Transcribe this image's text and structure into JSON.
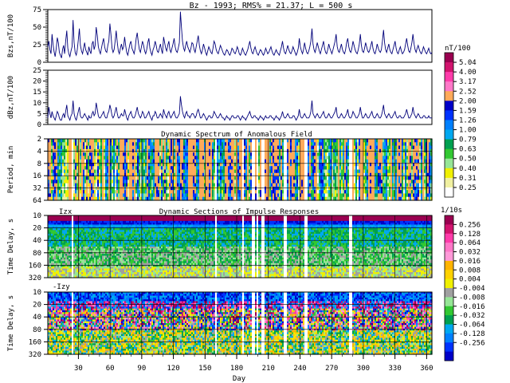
{
  "header": {
    "title": "Bz - 1993;  RMS% = 21.37;  L = 500 s"
  },
  "colors": {
    "trace": "#00007a",
    "grid": "#000000"
  },
  "chart_data": [
    {
      "type": "line",
      "panel": "bzs",
      "ylabel": "Bzs,nT/100",
      "yticks": [
        "0",
        "25",
        "50",
        "75"
      ],
      "ylim": [
        0,
        75
      ],
      "xlim": [
        1,
        365
      ],
      "y": [
        22,
        30,
        18,
        12,
        40,
        25,
        15,
        8,
        20,
        35,
        28,
        14,
        10,
        6,
        18,
        24,
        12,
        30,
        45,
        20,
        12,
        8,
        16,
        22,
        60,
        28,
        14,
        10,
        18,
        32,
        48,
        24,
        16,
        12,
        20,
        28,
        18,
        14,
        10,
        22,
        16,
        12,
        26,
        30,
        18,
        24,
        50,
        38,
        22,
        16,
        12,
        20,
        28,
        34,
        22,
        16,
        14,
        24,
        30,
        55,
        40,
        20,
        14,
        18,
        30,
        45,
        28,
        16,
        12,
        20,
        26,
        18,
        22,
        36,
        24,
        14,
        10,
        18,
        26,
        30,
        20,
        16,
        12,
        20,
        34,
        42,
        28,
        18,
        14,
        22,
        30,
        24,
        16,
        12,
        18,
        28,
        34,
        20,
        14,
        10,
        18,
        22,
        30,
        24,
        16,
        14,
        20,
        26,
        18,
        12,
        36,
        28,
        20,
        16,
        24,
        30,
        18,
        14,
        20,
        26,
        34,
        22,
        16,
        14,
        20,
        28,
        72,
        50,
        30,
        20,
        16,
        24,
        30,
        22,
        18,
        14,
        20,
        28,
        26,
        18,
        14,
        22,
        30,
        38,
        24,
        16,
        12,
        18,
        26,
        20,
        14,
        10,
        16,
        22,
        18,
        14,
        12,
        20,
        30,
        26,
        18,
        14,
        12,
        18,
        24,
        20,
        16,
        12,
        10,
        14,
        18,
        16,
        12,
        10,
        14,
        20,
        18,
        14,
        12,
        16,
        22,
        18,
        12,
        10,
        14,
        20,
        16,
        12,
        10,
        14,
        18,
        24,
        30,
        20,
        14,
        12,
        18,
        22,
        16,
        12,
        10,
        14,
        18,
        16,
        12,
        10,
        14,
        20,
        16,
        12,
        14,
        18,
        22,
        16,
        12,
        10,
        14,
        18,
        14,
        12,
        10,
        16,
        22,
        30,
        20,
        14,
        12,
        18,
        24,
        18,
        14,
        12,
        16,
        22,
        18,
        14,
        10,
        14,
        20,
        34,
        22,
        16,
        12,
        18,
        28,
        20,
        14,
        12,
        16,
        22,
        30,
        48,
        26,
        18,
        14,
        20,
        28,
        22,
        16,
        12,
        18,
        24,
        30,
        20,
        14,
        12,
        18,
        26,
        20,
        16,
        12,
        18,
        24,
        30,
        40,
        22,
        16,
        14,
        20,
        26,
        18,
        14,
        12,
        18,
        28,
        34,
        22,
        16,
        14,
        20,
        30,
        24,
        18,
        14,
        12,
        18,
        26,
        40,
        24,
        16,
        14,
        20,
        28,
        22,
        16,
        14,
        18,
        24,
        30,
        20,
        14,
        12,
        18,
        26,
        20,
        16,
        14,
        18,
        30,
        46,
        28,
        18,
        14,
        20,
        26,
        18,
        14,
        12,
        18,
        24,
        30,
        20,
        14,
        12,
        18,
        22,
        16,
        12,
        14,
        18,
        26,
        34,
        24,
        16,
        14,
        20,
        28,
        40,
        26,
        18,
        14,
        20,
        24,
        18,
        14,
        12,
        16,
        22,
        18,
        14,
        12,
        16,
        20,
        14,
        12,
        14
      ]
    },
    {
      "type": "line",
      "panel": "dbz",
      "ylabel": "dBz,nT/100",
      "yticks": [
        "0",
        "5",
        "10",
        "15",
        "20",
        "25"
      ],
      "ylim": [
        0,
        25
      ],
      "xlim": [
        1,
        365
      ],
      "y": [
        3,
        8,
        5,
        3,
        6,
        4,
        3,
        2,
        4,
        6,
        5,
        3,
        2,
        2,
        4,
        5,
        3,
        6,
        9,
        4,
        3,
        2,
        4,
        5,
        11,
        5,
        3,
        2,
        4,
        6,
        8,
        4,
        3,
        3,
        4,
        5,
        4,
        3,
        2,
        4,
        3,
        3,
        5,
        6,
        4,
        5,
        10,
        7,
        4,
        3,
        3,
        4,
        5,
        6,
        4,
        3,
        3,
        5,
        6,
        9,
        7,
        4,
        3,
        4,
        6,
        8,
        5,
        3,
        3,
        4,
        5,
        4,
        4,
        7,
        5,
        3,
        2,
        4,
        5,
        6,
        4,
        3,
        3,
        4,
        6,
        8,
        5,
        4,
        3,
        4,
        6,
        5,
        3,
        3,
        4,
        5,
        6,
        4,
        3,
        2,
        4,
        4,
        6,
        5,
        3,
        3,
        4,
        5,
        4,
        3,
        7,
        5,
        4,
        3,
        5,
        6,
        4,
        3,
        4,
        5,
        6,
        4,
        3,
        3,
        4,
        5,
        13,
        9,
        6,
        4,
        3,
        5,
        6,
        4,
        4,
        3,
        4,
        5,
        5,
        4,
        3,
        4,
        6,
        7,
        5,
        3,
        3,
        4,
        5,
        4,
        3,
        2,
        3,
        4,
        4,
        3,
        3,
        4,
        6,
        5,
        4,
        3,
        3,
        4,
        5,
        4,
        3,
        3,
        2,
        3,
        4,
        3,
        3,
        2,
        3,
        4,
        4,
        3,
        3,
        3,
        4,
        4,
        3,
        2,
        3,
        4,
        3,
        3,
        2,
        3,
        4,
        5,
        6,
        4,
        3,
        3,
        4,
        4,
        3,
        3,
        2,
        3,
        4,
        3,
        3,
        2,
        3,
        4,
        3,
        3,
        3,
        4,
        4,
        3,
        3,
        2,
        3,
        4,
        3,
        3,
        2,
        3,
        4,
        6,
        4,
        3,
        3,
        4,
        5,
        4,
        3,
        3,
        3,
        4,
        4,
        3,
        2,
        3,
        4,
        7,
        4,
        3,
        3,
        4,
        5,
        4,
        3,
        3,
        3,
        4,
        6,
        11,
        5,
        4,
        3,
        4,
        5,
        4,
        3,
        3,
        4,
        5,
        6,
        4,
        3,
        3,
        4,
        5,
        4,
        3,
        3,
        4,
        5,
        6,
        8,
        4,
        3,
        3,
        4,
        5,
        4,
        3,
        3,
        4,
        5,
        7,
        4,
        3,
        3,
        4,
        6,
        5,
        4,
        3,
        3,
        4,
        5,
        8,
        5,
        3,
        3,
        4,
        5,
        4,
        3,
        3,
        4,
        5,
        6,
        4,
        3,
        3,
        4,
        5,
        4,
        3,
        3,
        4,
        6,
        9,
        5,
        4,
        3,
        4,
        5,
        4,
        3,
        3,
        4,
        5,
        6,
        4,
        3,
        3,
        4,
        4,
        3,
        3,
        3,
        4,
        5,
        7,
        5,
        3,
        3,
        4,
        5,
        8,
        5,
        4,
        3,
        4,
        5,
        4,
        3,
        3,
        3,
        4,
        4,
        3,
        3,
        3,
        4,
        3,
        3,
        3
      ]
    },
    {
      "type": "heatmap",
      "panel": "spectrum",
      "title": "Dynamic Spectrum of Anomalous Field",
      "ylabel": "Period, min",
      "yticks": [
        "2",
        "4",
        "8",
        "16",
        "32",
        "64"
      ],
      "colorbar_unit": "nT/100",
      "colorbar_labels": [
        "5.04",
        "4.00",
        "3.17",
        "2.52",
        "2.00",
        "1.59",
        "1.26",
        "1.00",
        "0.79",
        "0.63",
        "0.50",
        "0.40",
        "0.31",
        "0.25"
      ],
      "palette": [
        "#9a0050",
        "#d2146e",
        "#ff3caa",
        "#ff78c8",
        "#ffaa5a",
        "#0000c8",
        "#0032ff",
        "#0080ff",
        "#00a8f0",
        "#00a050",
        "#32c832",
        "#96e696",
        "#f0f000",
        "#f0f0a0",
        "#ffffff"
      ]
    },
    {
      "type": "heatmap",
      "panel": "izx",
      "title": "Dynamic Sections of Impulse Responses",
      "label": "Izx",
      "ylabel": "Time Delay, s",
      "yticks": [
        "10",
        "20",
        "40",
        "80",
        "160",
        "320"
      ],
      "colorbar_unit": "1/10s",
      "colorbar_labels": [
        "0.256",
        "0.128",
        "0.064",
        "0.032",
        "0.016",
        "0.008",
        "0.004",
        "-0.004",
        "-0.008",
        "-0.016",
        "-0.032",
        "-0.064",
        "-0.128",
        "-0.256"
      ],
      "palette": [
        "#9a0050",
        "#d2146e",
        "#ff3caa",
        "#ff78c8",
        "#ff9ad8",
        "#ffb400",
        "#ffd200",
        "#f0f000",
        "#a0a0a0",
        "#96e696",
        "#32c832",
        "#00a050",
        "#00a8f0",
        "#0080ff",
        "#0032ff",
        "#0000c8"
      ]
    },
    {
      "type": "heatmap",
      "panel": "izy",
      "label": "-Izy",
      "ylabel": "Time Delay, s",
      "yticks": [
        "10",
        "20",
        "40",
        "80",
        "160",
        "320"
      ],
      "xlabel": "Day",
      "xticks": [
        "30",
        "60",
        "90",
        "120",
        "150",
        "180",
        "210",
        "240",
        "270",
        "300",
        "330",
        "360"
      ]
    }
  ]
}
